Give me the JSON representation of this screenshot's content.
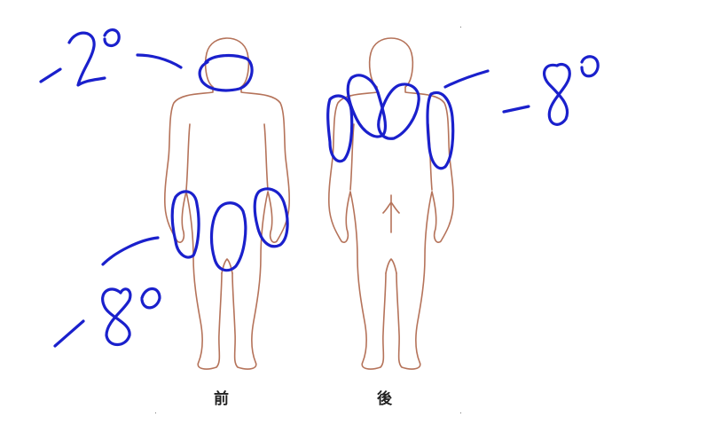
{
  "labels": {
    "front": "前",
    "back": "後"
  },
  "annotations": {
    "head": "-2°",
    "back_shoulders": "-8°",
    "front_legs": "-8°"
  },
  "colors": {
    "body_outline": "#b5735a",
    "ink": "#1a20cc",
    "label": "#222222",
    "background": "#ffffff"
  }
}
